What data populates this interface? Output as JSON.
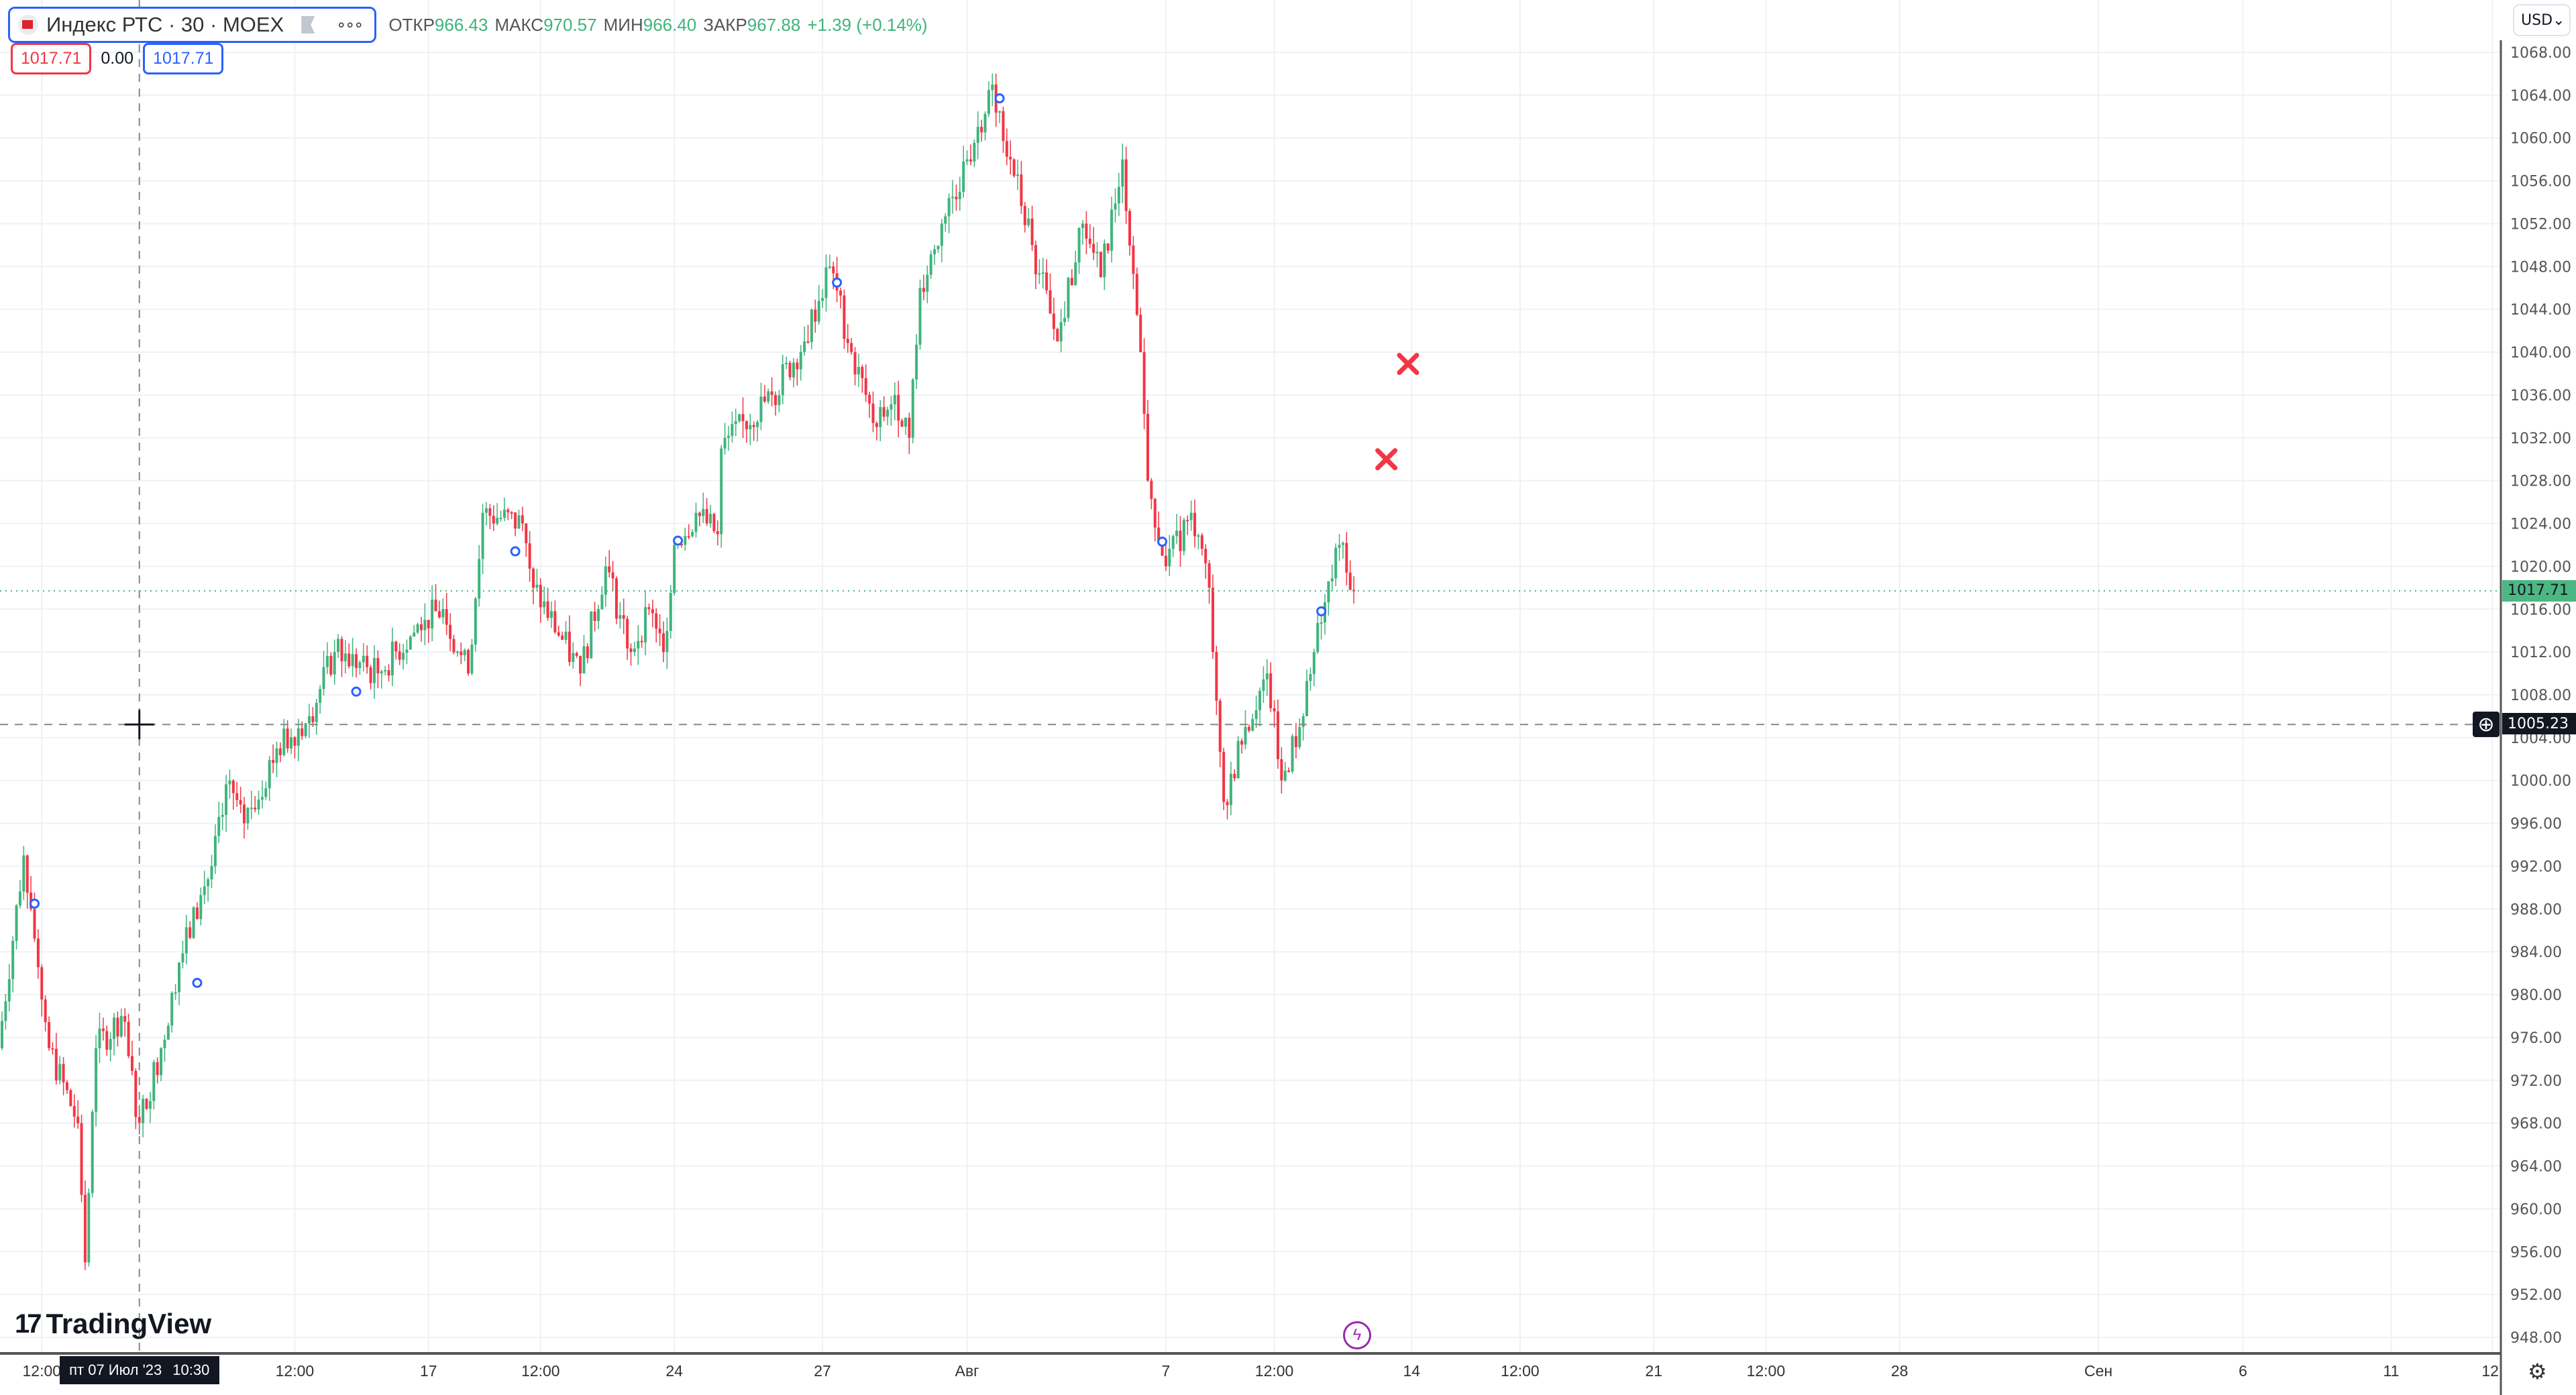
{
  "header": {
    "symbol": "Индекс РТС · 30 · MOEX",
    "more": "∘∘∘",
    "ohlc": [
      {
        "label": "ОТКР",
        "value": "966.43"
      },
      {
        "label": "МАКС",
        "value": "970.57"
      },
      {
        "label": "МИН",
        "value": "966.40"
      },
      {
        "label": "ЗАКР",
        "value": "967.88"
      }
    ],
    "change": "+1.39 (+0.14%)"
  },
  "price_boxes": {
    "sell": "1017.71",
    "spread": "0.00",
    "buy": "1017.71"
  },
  "currency": {
    "value": "USD",
    "icon": "chevron-down-icon"
  },
  "brand": "TradingView",
  "crosshair": {
    "time_label_date": "пт 07 Июл '23",
    "time_label_time": "10:30",
    "price_label": "1005.23",
    "price": 1005.23,
    "bar": 38
  },
  "last_price": {
    "label": "1017.71",
    "value": 1017.71,
    "color": "#4cb782"
  },
  "colors": {
    "up": "#3fb47c",
    "down": "#f23645",
    "grid": "#eef1f6",
    "marker": "#2962ff",
    "cross": "#f23645"
  },
  "chart_data": {
    "type": "candlestick",
    "price_axis": {
      "ticks": [
        "1068.00",
        "1064.00",
        "1060.00",
        "1056.00",
        "1052.00",
        "1048.00",
        "1044.00",
        "1040.00",
        "1036.00",
        "1032.00",
        "1028.00",
        "1024.00",
        "1020.00",
        "1016.00",
        "1012.00",
        "1008.00",
        "1004.00",
        "1000.00",
        "996.00",
        "992.00",
        "988.00",
        "984.00",
        "980.00",
        "976.00",
        "972.00",
        "968.00",
        "964.00",
        "960.00",
        "956.00",
        "952.00",
        "948.00"
      ],
      "range": [
        948,
        1068
      ]
    },
    "time_axis": [
      {
        "label": "12:00",
        "bar": 11
      },
      {
        "label": "12:00",
        "bar": 81
      },
      {
        "label": "17",
        "bar": 118
      },
      {
        "label": "12:00",
        "bar": 149
      },
      {
        "label": "24",
        "bar": 186
      },
      {
        "label": "27",
        "bar": 227
      },
      {
        "label": "Авг",
        "bar": 267
      },
      {
        "label": "7",
        "bar": 322
      },
      {
        "label": "12:00",
        "bar": 352
      },
      {
        "label": "14",
        "bar": 390
      },
      {
        "label": "12:00",
        "bar": 420
      },
      {
        "label": "21",
        "bar": 457
      },
      {
        "label": "12:00",
        "bar": 488
      },
      {
        "label": "28",
        "bar": 525
      },
      {
        "label": "Сен",
        "bar": 580
      },
      {
        "label": "6",
        "bar": 620
      },
      {
        "label": "11",
        "bar": 661
      },
      {
        "label": "12:",
        "bar": 689
      }
    ],
    "close_anchors": [
      [
        0,
        975
      ],
      [
        7,
        993
      ],
      [
        9,
        988
      ],
      [
        14,
        975
      ],
      [
        22,
        968
      ],
      [
        24,
        955
      ],
      [
        27,
        975
      ],
      [
        34,
        978
      ],
      [
        39,
        968
      ],
      [
        45,
        975
      ],
      [
        50,
        983
      ],
      [
        59,
        992
      ],
      [
        64,
        1000
      ],
      [
        68,
        996
      ],
      [
        77,
        1003
      ],
      [
        86,
        1006
      ],
      [
        93,
        1012
      ],
      [
        105,
        1010
      ],
      [
        118,
        1015
      ],
      [
        123,
        1016
      ],
      [
        130,
        1010
      ],
      [
        134,
        1025
      ],
      [
        145,
        1024
      ],
      [
        148,
        1018
      ],
      [
        161,
        1010
      ],
      [
        168,
        1020
      ],
      [
        175,
        1012
      ],
      [
        180,
        1016
      ],
      [
        184,
        1012
      ],
      [
        187,
        1022
      ],
      [
        193,
        1025
      ],
      [
        199,
        1023
      ],
      [
        200,
        1031
      ],
      [
        214,
        1036
      ],
      [
        223,
        1041
      ],
      [
        230,
        1048
      ],
      [
        236,
        1040
      ],
      [
        243,
        1033
      ],
      [
        248,
        1036
      ],
      [
        252,
        1032
      ],
      [
        255,
        1046
      ],
      [
        261,
        1052
      ],
      [
        268,
        1058
      ],
      [
        275,
        1065
      ],
      [
        280,
        1058
      ],
      [
        286,
        1050
      ],
      [
        293,
        1041
      ],
      [
        300,
        1052
      ],
      [
        305,
        1047
      ],
      [
        311,
        1058
      ],
      [
        316,
        1040
      ],
      [
        318,
        1028
      ],
      [
        323,
        1020
      ],
      [
        330,
        1025
      ],
      [
        335,
        1018
      ],
      [
        336,
        1012
      ],
      [
        339,
        998
      ],
      [
        345,
        1005
      ],
      [
        351,
        1010
      ],
      [
        355,
        1000
      ],
      [
        361,
        1006
      ],
      [
        364,
        1012
      ],
      [
        371,
        1022
      ],
      [
        375,
        1017.71
      ]
    ],
    "markers": [
      {
        "type": "circle",
        "bar": 9,
        "price": 988.5
      },
      {
        "type": "circle",
        "bar": 54,
        "price": 981.1
      },
      {
        "type": "circle",
        "bar": 98,
        "price": 1008.3
      },
      {
        "type": "circle",
        "bar": 142,
        "price": 1021.4
      },
      {
        "type": "circle",
        "bar": 187,
        "price": 1022.4
      },
      {
        "type": "circle",
        "bar": 231,
        "price": 1046.5
      },
      {
        "type": "circle",
        "bar": 276,
        "price": 1063.7
      },
      {
        "type": "circle",
        "bar": 321,
        "price": 1022.3
      },
      {
        "type": "circle",
        "bar": 365,
        "price": 1015.8
      },
      {
        "type": "cross",
        "bar": 389,
        "price": 1038.9
      },
      {
        "type": "cross",
        "bar": 383,
        "price": 1030.0
      }
    ]
  }
}
